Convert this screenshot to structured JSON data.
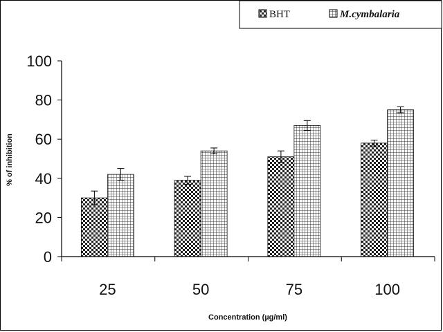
{
  "chart_data": {
    "type": "bar",
    "categories": [
      "25",
      "50",
      "75",
      "100"
    ],
    "series": [
      {
        "name": "BHT",
        "values": [
          30,
          39,
          51,
          58
        ],
        "errors": [
          3.5,
          2,
          3,
          1.5
        ],
        "pattern": "checker"
      },
      {
        "name": "M.cymbalaria",
        "values": [
          42,
          54,
          67,
          75
        ],
        "errors": [
          3,
          1.5,
          2.5,
          1.5
        ],
        "pattern": "grid"
      }
    ],
    "xlabel": "Concentration (µg/ml)",
    "ylabel": "% of inhibition",
    "ylim": [
      0,
      100
    ],
    "yticks": [
      0,
      20,
      40,
      60,
      80,
      100
    ],
    "grid": false,
    "legend_position": "top-right",
    "colors": {
      "bar_dark": "#222222",
      "bar_light": "#ffffff",
      "axis": "#000000"
    }
  }
}
